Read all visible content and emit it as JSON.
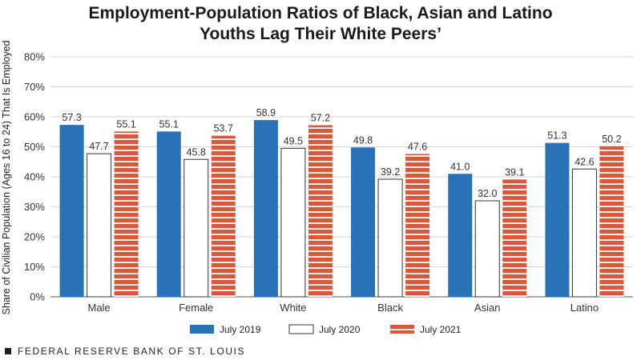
{
  "chart_data": {
    "type": "bar",
    "title": "Employment-Population Ratios of Black, Asian and Latino Youths Lag Their White Peers’",
    "title_lines": [
      "Employment-Population Ratios of Black, Asian and Latino",
      "Youths Lag Their White Peers’"
    ],
    "xlabel": "",
    "ylabel": "Share of Civilian Population (Ages 16 to 24) That Is Employed",
    "ylim": [
      0,
      80
    ],
    "yticks": [
      "0%",
      "10%",
      "20%",
      "30%",
      "40%",
      "50%",
      "60%",
      "70%",
      "80%"
    ],
    "categories": [
      "Male",
      "Female",
      "White",
      "Black",
      "Asian",
      "Latino"
    ],
    "series": [
      {
        "name": "July 2019",
        "values": [
          57.3,
          55.1,
          58.9,
          49.8,
          41.0,
          51.3
        ],
        "labels": [
          "57.3",
          "55.1",
          "58.9",
          "49.8",
          "41.0",
          "51.3"
        ],
        "color": "#2a72b8",
        "style": "solid"
      },
      {
        "name": "July 2020",
        "values": [
          47.7,
          45.8,
          49.5,
          39.2,
          32.0,
          42.6
        ],
        "labels": [
          "47.7",
          "45.8",
          "49.5",
          "39.2",
          "32.0",
          "42.6"
        ],
        "color": "#ffffff",
        "style": "outline"
      },
      {
        "name": "July 2021",
        "values": [
          55.1,
          53.7,
          57.2,
          47.6,
          39.1,
          50.2
        ],
        "labels": [
          "55.1",
          "53.7",
          "57.2",
          "47.6",
          "39.1",
          "50.2"
        ],
        "color": "#d9573a",
        "style": "striped"
      }
    ],
    "grid": true,
    "legend": "bottom-center"
  },
  "footer": {
    "source": "FEDERAL RESERVE BANK OF ST. LOUIS"
  }
}
